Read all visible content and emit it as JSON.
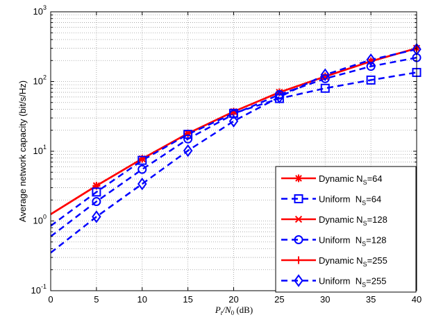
{
  "chart_data": {
    "type": "line",
    "title": "",
    "xlabel": "P_t/N_0 (dB)",
    "ylabel": "Average network capacity (bit/s/Hz)",
    "xlim": [
      0,
      40
    ],
    "ylim": [
      0.1,
      1000
    ],
    "yscale": "log",
    "grid": true,
    "legend_position": "bottom-right",
    "x_ticks": [
      "0",
      "5",
      "10",
      "15",
      "20",
      "25",
      "30",
      "35",
      "40"
    ],
    "y_tick_exponents": [
      "-1",
      "0",
      "1",
      "2",
      "3"
    ],
    "x": [
      0,
      5,
      10,
      15,
      20,
      25,
      30,
      35,
      40
    ],
    "series": [
      {
        "name": "Dynamic N_S=64",
        "legend_main": "Dynamic N",
        "legend_sub": "S",
        "legend_tail": "=64",
        "color": "#ff0000",
        "dash": "solid",
        "marker": "asterisk",
        "values": [
          1.25,
          3.2,
          7.8,
          18,
          37,
          70,
          118,
          195,
          300
        ]
      },
      {
        "name": "Uniform N_S=64",
        "legend_main": "Uniform  N",
        "legend_sub": "S",
        "legend_tail": "=64",
        "color": "#0000ff",
        "dash": "dashed",
        "marker": "square",
        "values": [
          0.85,
          2.6,
          7.4,
          17.5,
          35,
          57,
          80,
          105,
          135
        ]
      },
      {
        "name": "Dynamic N_S=128",
        "legend_main": "Dynamic N",
        "legend_sub": "S",
        "legend_tail": "=128",
        "color": "#ff0000",
        "dash": "solid",
        "marker": "x",
        "values": [
          1.25,
          3.2,
          7.8,
          18,
          37,
          70,
          118,
          195,
          300
        ]
      },
      {
        "name": "Uniform N_S=128",
        "legend_main": "Uniform  N",
        "legend_sub": "S",
        "legend_tail": "=128",
        "color": "#0000ff",
        "dash": "dashed",
        "marker": "circle",
        "values": [
          0.6,
          1.9,
          5.5,
          15,
          34,
          65,
          110,
          165,
          220
        ]
      },
      {
        "name": "Dynamic N_S=255",
        "legend_main": "Dynamic N",
        "legend_sub": "S",
        "legend_tail": "=255",
        "color": "#ff0000",
        "dash": "solid",
        "marker": "plus",
        "values": [
          1.25,
          3.2,
          7.8,
          18,
          37,
          70,
          118,
          195,
          300
        ]
      },
      {
        "name": "Uniform N_S=255",
        "legend_main": "Uniform  N",
        "legend_sub": "S",
        "legend_tail": "=255",
        "color": "#0000ff",
        "dash": "dashed",
        "marker": "diamond",
        "values": [
          0.35,
          1.15,
          3.4,
          10.2,
          27,
          60,
          125,
          205,
          290
        ]
      }
    ]
  }
}
